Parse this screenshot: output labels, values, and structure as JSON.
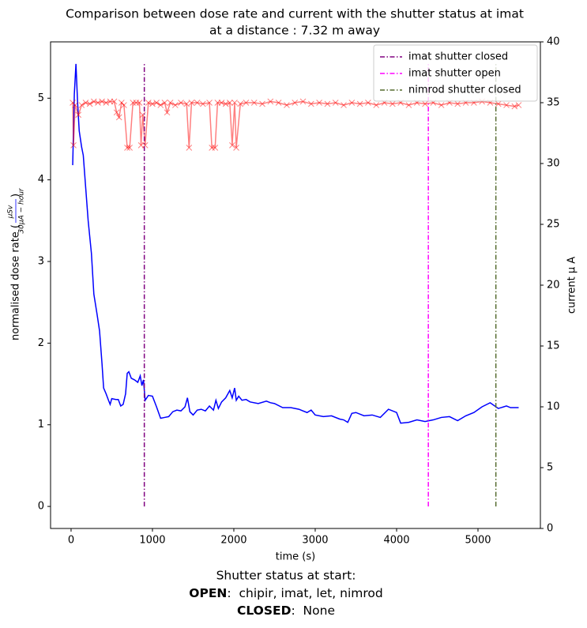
{
  "chart_data": {
    "type": "line",
    "title": [
      "Comparison between dose rate and current with the shutter status at imat",
      "at a distance : 7.32 m away"
    ],
    "xlabel": "time (s)",
    "ylabel": {
      "text": "normalised dose rate (",
      "numerator": "μSv",
      "denominator": "30μA − hour",
      "close": ")",
      "color": "#0000ff"
    },
    "y2label": {
      "text": "current μ A",
      "color": "#ff0000"
    },
    "xlim": [
      -252,
      5767
    ],
    "ylim": [
      -0.27,
      5.69
    ],
    "y2lim": [
      0,
      40
    ],
    "xticks": [
      0,
      1000,
      2000,
      3000,
      4000,
      5000
    ],
    "yticks": [
      0,
      1,
      2,
      3,
      4,
      5
    ],
    "y2ticks": [
      0,
      5,
      10,
      15,
      20,
      25,
      30,
      35,
      40
    ],
    "legend": "upper right",
    "series": [
      {
        "name": "dose rate",
        "kind": "line",
        "color": "#0000ff",
        "x": [
          20,
          40,
          60,
          80,
          100,
          130,
          150,
          180,
          210,
          250,
          280,
          320,
          350,
          380,
          400,
          430,
          460,
          480,
          500,
          550,
          580,
          610,
          640,
          670,
          690,
          710,
          740,
          780,
          820,
          850,
          870,
          890,
          910,
          950,
          1000,
          1050,
          1100,
          1150,
          1200,
          1250,
          1300,
          1350,
          1400,
          1430,
          1460,
          1500,
          1550,
          1600,
          1650,
          1700,
          1750,
          1780,
          1810,
          1850,
          1900,
          1950,
          1980,
          2010,
          2030,
          2060,
          2100,
          2150,
          2200,
          2300,
          2400,
          2450,
          2500,
          2600,
          2700,
          2800,
          2900,
          2950,
          3000,
          3100,
          3200,
          3300,
          3350,
          3400,
          3450,
          3500,
          3600,
          3700,
          3800,
          3900,
          4000,
          4050,
          4150,
          4250,
          4350,
          4450,
          4550,
          4650,
          4750,
          4850,
          4950,
          5050,
          5150,
          5250,
          5350,
          5400,
          5500
        ],
        "values": [
          4.18,
          5.05,
          5.42,
          4.95,
          4.6,
          4.4,
          4.3,
          3.9,
          3.5,
          3.1,
          2.6,
          2.35,
          2.15,
          1.75,
          1.45,
          1.38,
          1.3,
          1.25,
          1.32,
          1.31,
          1.31,
          1.23,
          1.25,
          1.38,
          1.63,
          1.65,
          1.57,
          1.55,
          1.52,
          1.6,
          1.48,
          1.55,
          1.3,
          1.36,
          1.35,
          1.22,
          1.08,
          1.09,
          1.1,
          1.16,
          1.18,
          1.17,
          1.22,
          1.33,
          1.16,
          1.12,
          1.18,
          1.19,
          1.17,
          1.23,
          1.18,
          1.3,
          1.2,
          1.28,
          1.33,
          1.42,
          1.33,
          1.45,
          1.3,
          1.35,
          1.3,
          1.31,
          1.28,
          1.26,
          1.29,
          1.27,
          1.26,
          1.21,
          1.21,
          1.19,
          1.15,
          1.18,
          1.12,
          1.1,
          1.11,
          1.07,
          1.06,
          1.03,
          1.14,
          1.15,
          1.11,
          1.12,
          1.09,
          1.19,
          1.15,
          1.02,
          1.03,
          1.06,
          1.04,
          1.06,
          1.09,
          1.1,
          1.05,
          1.11,
          1.15,
          1.22,
          1.27,
          1.2,
          1.23,
          1.21,
          1.21
        ]
      },
      {
        "name": "current",
        "kind": "line-marker",
        "axis": "y2",
        "color": "#ff0000",
        "x": [
          20,
          30,
          50,
          90,
          130,
          180,
          230,
          280,
          330,
          380,
          430,
          480,
          530,
          560,
          590,
          620,
          650,
          690,
          720,
          760,
          800,
          840,
          860,
          880,
          910,
          950,
          1000,
          1050,
          1100,
          1150,
          1180,
          1220,
          1280,
          1350,
          1420,
          1450,
          1480,
          1550,
          1620,
          1700,
          1730,
          1770,
          1800,
          1850,
          1900,
          1950,
          1980,
          2010,
          2030,
          2080,
          2150,
          2250,
          2350,
          2450,
          2550,
          2650,
          2750,
          2850,
          2950,
          3050,
          3150,
          3250,
          3350,
          3450,
          3550,
          3650,
          3750,
          3850,
          3950,
          4050,
          4150,
          4250,
          4350,
          4450,
          4550,
          4650,
          4750,
          4850,
          4950,
          5050,
          5150,
          5250,
          5350,
          5450,
          5500
        ],
        "values": [
          35,
          31.5,
          34.8,
          34,
          34.8,
          35,
          34.9,
          35.1,
          35,
          35.1,
          35,
          35.1,
          35.1,
          34.2,
          33.8,
          35,
          34.8,
          31.3,
          31.3,
          35,
          35,
          35,
          31.5,
          34,
          31.5,
          35,
          34.9,
          35,
          34.8,
          35,
          34.2,
          35,
          34.8,
          35,
          34.9,
          31.3,
          35,
          35,
          34.9,
          35,
          31.3,
          31.3,
          35,
          35,
          34.9,
          35,
          31.5,
          35,
          31.3,
          34.9,
          35,
          35,
          34.9,
          35.1,
          35,
          34.8,
          35,
          35.1,
          34.9,
          35,
          34.9,
          35,
          34.8,
          35,
          34.9,
          35,
          34.8,
          35,
          34.9,
          35,
          34.8,
          35,
          34.9,
          35,
          34.8,
          35,
          34.9,
          35,
          35,
          35.1,
          35,
          34.9,
          34.8,
          34.7,
          34.8
        ]
      },
      {
        "name": "imat shutter closed",
        "kind": "vline",
        "color": "#800080",
        "x": 900,
        "ymin": 0,
        "ymax": 5.42
      },
      {
        "name": "imat shutter open",
        "kind": "vline",
        "color": "#ff00ff",
        "x": 4390,
        "ymin": 0,
        "ymax": 5.42
      },
      {
        "name": "nimrod shutter closed",
        "kind": "vline",
        "color": "#556b2f",
        "x": 5220,
        "ymin": 0,
        "ymax": 5.42
      }
    ],
    "footer": {
      "heading": "Shutter status at start:",
      "open_label": "OPEN",
      "open_list": ":  chipir, imat, let, nimrod",
      "closed_label": "CLOSED",
      "closed_list": ":  None"
    }
  }
}
